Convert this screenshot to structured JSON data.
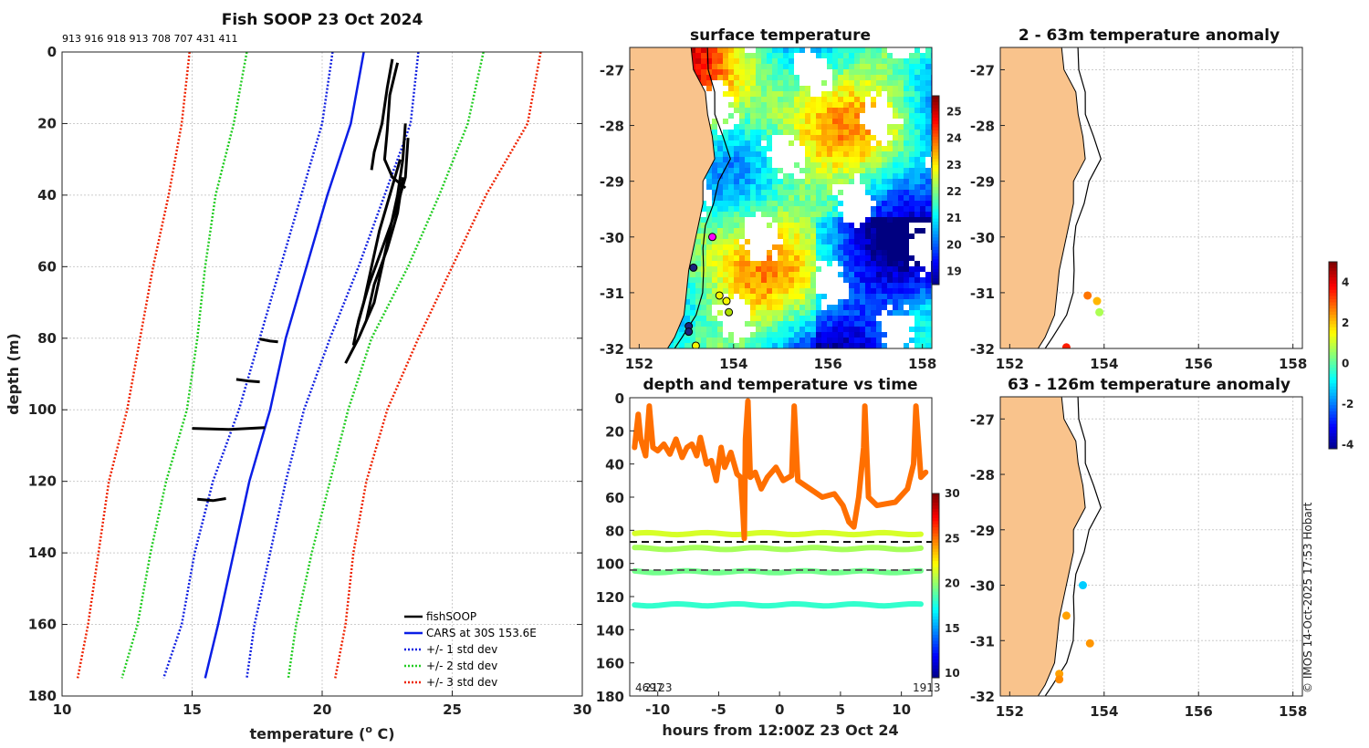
{
  "colors": {
    "land": "#f9c38c",
    "fishsoop": "#000000",
    "cars": "#0a1ee6",
    "std1": "#1020e0",
    "std2": "#22cc22",
    "std3": "#ee2200",
    "dashed_black": "#000000"
  },
  "copyright": "© IMOS 14-Oct-2025 17:53 Hobart",
  "chart_data": [
    {
      "id": "profile",
      "type": "line",
      "title": "Fish SOOP 23 Oct 2024",
      "subtitle": "913 916 918 913 708 707 431 411",
      "xlabel": "temperature (",
      "xlabel_sup": "o",
      "xlabel_suffix": " C)",
      "ylabel": "depth (m)",
      "xlim": [
        10,
        30
      ],
      "ylim": [
        0,
        180
      ],
      "y_reversed": true,
      "xticks": [
        10,
        15,
        20,
        25,
        30
      ],
      "yticks": [
        0,
        20,
        40,
        60,
        80,
        100,
        120,
        140,
        160,
        180
      ],
      "grid": true,
      "legend_position": "bottom-right",
      "legend": [
        "fishSOOP",
        "CARS at 30S 153.6E",
        "+/- 1 std dev",
        "+/- 2 std dev",
        "+/- 3 std dev"
      ],
      "cars_mean": {
        "depth": [
          0,
          20,
          40,
          60,
          80,
          100,
          120,
          140,
          160,
          175
        ],
        "temp": [
          21.6,
          21.1,
          20.2,
          19.4,
          18.6,
          18.0,
          17.2,
          16.6,
          16.0,
          15.5
        ]
      },
      "std_envelopes": [
        {
          "name": "+/- 1 std dev",
          "low": [
            20.4,
            20.0,
            19.2,
            18.4,
            17.6,
            16.8,
            15.8,
            15.1,
            14.6,
            13.9
          ],
          "high": [
            23.7,
            23.4,
            22.4,
            21.4,
            20.3,
            19.3,
            18.6,
            18.0,
            17.4,
            17.1
          ]
        },
        {
          "name": "+/- 2 std dev",
          "low": [
            17.1,
            16.6,
            15.9,
            15.5,
            15.2,
            14.8,
            14.0,
            13.4,
            12.9,
            12.3
          ],
          "high": [
            26.2,
            25.6,
            24.5,
            23.3,
            21.9,
            21.0,
            20.3,
            19.6,
            19.0,
            18.7
          ]
        },
        {
          "name": "+/- 3 std dev",
          "low": [
            14.9,
            14.6,
            14.1,
            13.5,
            13.0,
            12.5,
            11.8,
            11.4,
            11.0,
            10.6
          ],
          "high": [
            28.4,
            27.9,
            26.3,
            25.0,
            23.7,
            22.5,
            21.7,
            21.2,
            20.9,
            20.5
          ]
        }
      ],
      "fishsoop": [
        {
          "depth": [
            2,
            10,
            20,
            28,
            33
          ],
          "temp": [
            22.7,
            22.5,
            22.3,
            22.0,
            21.9
          ]
        },
        {
          "depth": [
            3,
            12,
            22,
            30,
            35,
            38
          ],
          "temp": [
            22.9,
            22.6,
            22.5,
            22.4,
            22.7,
            23.2
          ]
        },
        {
          "depth": [
            20,
            30,
            40,
            50,
            60,
            70,
            80,
            87
          ],
          "temp": [
            23.2,
            23.1,
            22.9,
            22.6,
            22.3,
            22.0,
            21.4,
            20.9
          ]
        },
        {
          "depth": [
            24,
            35,
            45,
            55,
            65,
            75,
            82
          ],
          "temp": [
            23.3,
            23.2,
            22.8,
            22.3,
            21.8,
            21.4,
            21.2
          ]
        },
        {
          "depth": [
            30,
            40,
            50,
            60,
            70,
            78
          ],
          "temp": [
            23.0,
            22.6,
            22.2,
            21.9,
            21.6,
            21.3
          ]
        },
        {
          "depth": [
            35,
            45,
            55,
            65,
            75
          ],
          "temp": [
            23.1,
            22.9,
            22.5,
            22.0,
            21.7
          ]
        },
        {
          "depth": [
            80.2,
            80.8,
            81.0
          ],
          "temp": [
            17.6,
            18.0,
            18.3
          ]
        },
        {
          "depth": [
            91.5,
            92.0,
            92.2
          ],
          "temp": [
            16.7,
            17.2,
            17.6
          ]
        },
        {
          "depth": [
            105.2,
            105.5,
            105.0
          ],
          "temp": [
            15.0,
            16.4,
            17.8
          ]
        },
        {
          "depth": [
            125.0,
            125.4,
            124.8
          ],
          "temp": [
            15.2,
            15.8,
            16.3
          ]
        }
      ]
    },
    {
      "id": "sst",
      "type": "heatmap",
      "title": "surface temperature",
      "xlim": [
        151.8,
        158.2
      ],
      "ylim": [
        -32,
        -26.6
      ],
      "xticks": [
        152,
        154,
        156,
        158
      ],
      "yticks": [
        -27,
        -28,
        -29,
        -30,
        -31,
        -32
      ],
      "colorbar_ticks": [
        19,
        20,
        21,
        22,
        23,
        24,
        25
      ],
      "colorbar_range": [
        18.5,
        25.6
      ],
      "markers": [
        {
          "lon": 153.55,
          "lat": -30.0,
          "color": "#ff00ff"
        },
        {
          "lon": 153.15,
          "lat": -30.55,
          "color": "#1a237e"
        },
        {
          "lon": 153.05,
          "lat": -31.6,
          "color": "#1a237e"
        },
        {
          "lon": 153.05,
          "lat": -31.7,
          "color": "#1a237e"
        },
        {
          "lon": 153.7,
          "lat": -31.05,
          "color": "#f6f600"
        },
        {
          "lon": 153.85,
          "lat": -31.15,
          "color": "#f6f600"
        },
        {
          "lon": 153.9,
          "lat": -31.35,
          "color": "#b0e000"
        },
        {
          "lon": 153.2,
          "lat": -31.95,
          "color": "#f6f600"
        }
      ]
    },
    {
      "id": "anom1",
      "type": "scatter",
      "title": "2 - 63m temperature anomaly",
      "xlim": [
        151.8,
        158.2
      ],
      "ylim": [
        -32,
        -26.6
      ],
      "xticks": [
        152,
        154,
        156,
        158
      ],
      "yticks": [
        -27,
        -28,
        -29,
        -30,
        -31,
        -32
      ],
      "points": [
        {
          "lon": 153.65,
          "lat": -31.05,
          "value": 2.8
        },
        {
          "lon": 153.85,
          "lat": -31.15,
          "value": 2.2
        },
        {
          "lon": 153.9,
          "lat": -31.35,
          "value": 0.8
        },
        {
          "lon": 153.2,
          "lat": -31.98,
          "value": 3.6
        }
      ]
    },
    {
      "id": "anom2",
      "type": "scatter",
      "title": "63 - 126m temperature anomaly",
      "xlim": [
        151.8,
        158.2
      ],
      "ylim": [
        -32,
        -26.6
      ],
      "xticks": [
        152,
        154,
        156,
        158
      ],
      "yticks": [
        -27,
        -28,
        -29,
        -30,
        -31,
        -32
      ],
      "colorbar_ticks": [
        -4,
        -2,
        0,
        2,
        4
      ],
      "colorbar_range": [
        -4.2,
        5
      ],
      "points": [
        {
          "lon": 153.55,
          "lat": -30.0,
          "value": -1.2
        },
        {
          "lon": 153.2,
          "lat": -30.55,
          "value": 2.4
        },
        {
          "lon": 153.7,
          "lat": -31.05,
          "value": 2.5
        },
        {
          "lon": 153.05,
          "lat": -31.6,
          "value": 2.4
        },
        {
          "lon": 153.05,
          "lat": -31.7,
          "value": 2.6
        }
      ]
    },
    {
      "id": "timeseries",
      "type": "scatter",
      "title": "depth and temperature vs time",
      "xlabel": "hours from 12:00Z 23 Oct 24",
      "xlim": [
        -12.3,
        12.5
      ],
      "ylim": [
        0,
        180
      ],
      "y_reversed": true,
      "xticks": [
        -10,
        -5,
        0,
        5,
        10
      ],
      "yticks": [
        0,
        20,
        40,
        60,
        80,
        100,
        120,
        140,
        160,
        180
      ],
      "colorbar_ticks": [
        10,
        15,
        20,
        25,
        30
      ],
      "colorbar_range": [
        9.5,
        30
      ],
      "corner_left": "4697",
      "corner_left2": "2123",
      "corner_right": "1913",
      "dashed_lines": [
        {
          "depth": 87,
          "color": "#000000"
        },
        {
          "depth": 104,
          "color": "#555555"
        }
      ],
      "bands": [
        {
          "depth": 82,
          "temp": 21.5
        },
        {
          "depth": 91,
          "temp": 20.5
        },
        {
          "depth": 105,
          "temp": 19.5
        },
        {
          "depth": 125,
          "temp": 18.2
        }
      ],
      "shallow_trace_temp": 25.2,
      "shallow_trace": [
        [
          -11.9,
          30
        ],
        [
          -11.6,
          10
        ],
        [
          -11.4,
          25
        ],
        [
          -11.0,
          35
        ],
        [
          -10.7,
          5
        ],
        [
          -10.4,
          30
        ],
        [
          -10.0,
          32
        ],
        [
          -9.5,
          28
        ],
        [
          -9.0,
          34
        ],
        [
          -8.5,
          25
        ],
        [
          -8.0,
          36
        ],
        [
          -7.6,
          30
        ],
        [
          -7.2,
          28
        ],
        [
          -6.8,
          35
        ],
        [
          -6.5,
          24
        ],
        [
          -6.0,
          40
        ],
        [
          -5.6,
          38
        ],
        [
          -5.2,
          50
        ],
        [
          -4.8,
          30
        ],
        [
          -4.5,
          42
        ],
        [
          -4.0,
          33
        ],
        [
          -3.5,
          46
        ],
        [
          -3.2,
          48
        ],
        [
          -3.0,
          70
        ],
        [
          -2.9,
          85
        ],
        [
          -2.8,
          25
        ],
        [
          -2.6,
          2
        ],
        [
          -2.4,
          48
        ],
        [
          -2.0,
          45
        ],
        [
          -1.5,
          55
        ],
        [
          -1.0,
          48
        ],
        [
          -0.3,
          42
        ],
        [
          0.3,
          50
        ],
        [
          1.0,
          47
        ],
        [
          1.2,
          5
        ],
        [
          1.5,
          50
        ],
        [
          2.5,
          55
        ],
        [
          3.5,
          60
        ],
        [
          4.5,
          58
        ],
        [
          5.2,
          65
        ],
        [
          5.7,
          75
        ],
        [
          6.1,
          78
        ],
        [
          6.5,
          60
        ],
        [
          6.9,
          30
        ],
        [
          7.0,
          5
        ],
        [
          7.3,
          60
        ],
        [
          8.0,
          65
        ],
        [
          9.5,
          63
        ],
        [
          10.5,
          55
        ],
        [
          11.0,
          40
        ],
        [
          11.2,
          5
        ],
        [
          11.6,
          48
        ],
        [
          12.0,
          45
        ]
      ]
    }
  ]
}
